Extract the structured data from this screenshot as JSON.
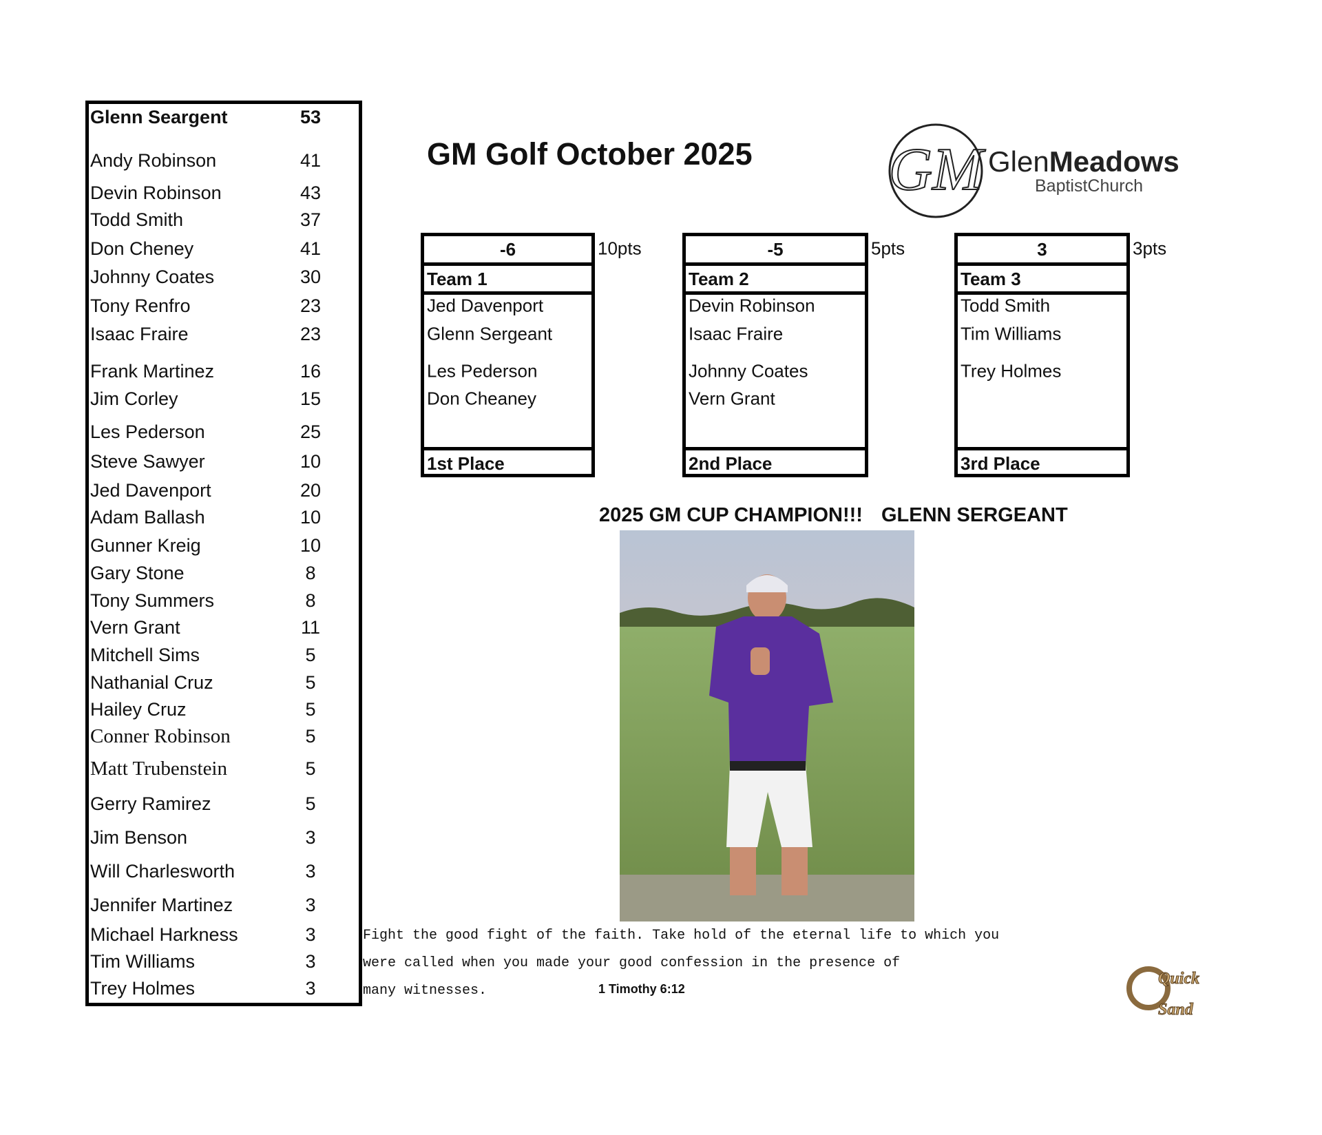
{
  "leaderboard": {
    "rows": [
      {
        "name": "Glenn Seargent",
        "points": 53
      },
      {
        "name": "Andy Robinson",
        "points": 41
      },
      {
        "name": "Devin Robinson",
        "points": 43
      },
      {
        "name": "Todd Smith",
        "points": 37
      },
      {
        "name": "Don Cheney",
        "points": 41
      },
      {
        "name": "Johnny Coates",
        "points": 30
      },
      {
        "name": "Tony Renfro",
        "points": 23
      },
      {
        "name": "Isaac Fraire",
        "points": 23
      },
      {
        "name": "Frank Martinez",
        "points": 16
      },
      {
        "name": "Jim Corley",
        "points": 15
      },
      {
        "name": "Les Pederson",
        "points": 25
      },
      {
        "name": "Steve Sawyer",
        "points": 10
      },
      {
        "name": "Jed Davenport",
        "points": 20
      },
      {
        "name": "Adam Ballash",
        "points": 10
      },
      {
        "name": "Gunner Kreig",
        "points": 10
      },
      {
        "name": "Gary Stone",
        "points": 8
      },
      {
        "name": "Tony Summers",
        "points": 8
      },
      {
        "name": "Vern Grant",
        "points": 11
      },
      {
        "name": "Mitchell Sims",
        "points": 5
      },
      {
        "name": "Nathanial Cruz",
        "points": 5
      },
      {
        "name": "Hailey Cruz",
        "points": 5
      },
      {
        "name": "Conner Robinson",
        "points": 5
      },
      {
        "name": "Matt Trubenstein",
        "points": 5
      },
      {
        "name": "Gerry Ramirez",
        "points": 5
      },
      {
        "name": "Jim Benson",
        "points": 3
      },
      {
        "name": "Will Charlesworth",
        "points": 3
      },
      {
        "name": "Jennifer Martinez",
        "points": 3
      },
      {
        "name": "Michael Harkness",
        "points": 3
      },
      {
        "name": "Tim Williams",
        "points": 3
      },
      {
        "name": "Trey Holmes",
        "points": 3
      }
    ]
  },
  "header": {
    "title": "GM Golf October  2025"
  },
  "logo": {
    "monogram": "GM",
    "name_light": "Glen",
    "name_bold": "Meadows",
    "subtitle": "BaptistChurch"
  },
  "teams": [
    {
      "score": -6,
      "points": "10pts",
      "name": "Team 1",
      "members": [
        "Jed Davenport",
        "Glenn Sergeant",
        "Les Pederson",
        "Don Cheaney"
      ],
      "place": "1st Place"
    },
    {
      "score": -5,
      "points": "5pts",
      "name": "Team 2",
      "members": [
        "Devin Robinson",
        "Isaac Fraire",
        "Johnny Coates",
        "Vern Grant"
      ],
      "place": "2nd Place"
    },
    {
      "score": 3,
      "points": "3pts",
      "name": "Team 3",
      "members": [
        "Todd Smith",
        "Tim Williams",
        "Trey Holmes"
      ],
      "place": "3rd Place"
    }
  ],
  "champion": {
    "label": "2025 GM CUP CHAMPION!!!",
    "name": "GLENN SERGEANT"
  },
  "verse": {
    "lines": [
      "Fight the good fight of the faith. Take hold of the eternal life to which you",
      "were called when you made your good confession in the presence of",
      "many witnesses."
    ],
    "reference": "1 Timothy 6:12"
  },
  "sponsor": {
    "top": "Quick",
    "bottom": "Sand"
  }
}
